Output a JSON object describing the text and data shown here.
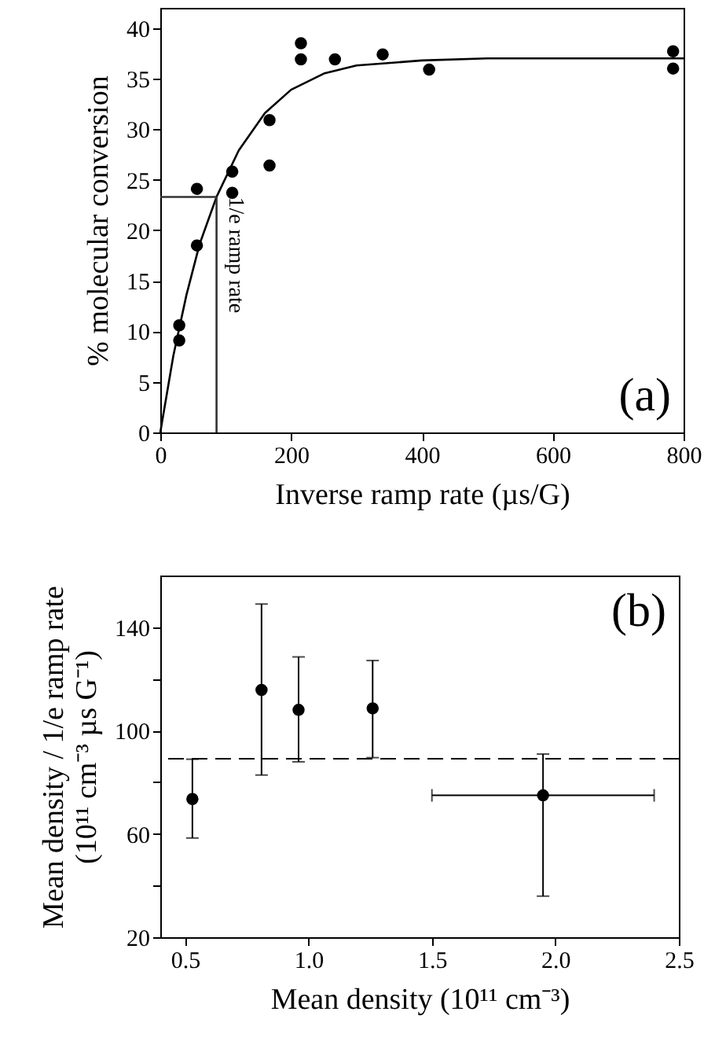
{
  "chart_data": [
    {
      "type": "scatter",
      "xlabel": "Inverse ramp rate (µs/G)",
      "ylabel": "% molecular conversion",
      "xlim": [
        0,
        800
      ],
      "xticks": [
        0,
        200,
        400,
        600,
        800
      ],
      "ylim": [
        0,
        42
      ],
      "yticks": [
        0,
        5,
        10,
        15,
        20,
        25,
        30,
        35,
        40
      ],
      "grid": false,
      "series": [
        {
          "type": "scatter",
          "marker": "circle",
          "color": "#000000",
          "x": [
            29,
            29,
            56,
            56,
            110,
            110,
            167,
            167,
            215,
            215,
            267,
            340,
            411,
            784,
            784
          ],
          "values": [
            10.6,
            9.1,
            24.1,
            18.5,
            25.8,
            23.7,
            30.9,
            26.4,
            38.5,
            36.9,
            36.9,
            37.4,
            35.9,
            37.7,
            36.0
          ]
        },
        {
          "type": "line",
          "color": "#000000",
          "line_style": "solid",
          "x": [
            0,
            20,
            40,
            60,
            86,
            120,
            160,
            200,
            250,
            300,
            400,
            500,
            600,
            800
          ],
          "values": [
            0,
            7.6,
            13.6,
            18.6,
            23.3,
            27.9,
            31.6,
            33.9,
            35.5,
            36.3,
            36.8,
            37,
            37,
            37
          ]
        },
        {
          "type": "line",
          "color": "#333333",
          "line_style": "solid",
          "x": [
            0,
            86,
            86
          ],
          "values": [
            23.3,
            23.3,
            0
          ]
        }
      ],
      "annotations": [
        "(a)",
        {
          "text": "1/e ramp rate",
          "x": 86,
          "y": 23.3
        }
      ]
    },
    {
      "type": "scatter",
      "xlabel": "Mean density (10¹¹ cm⁻³)",
      "ylabel": "Mean density / 1/e ramp rate\n(10¹¹ cm⁻³ µs G⁻¹)",
      "xlim": [
        0.4,
        2.5
      ],
      "xticks": [
        {
          "value": 0.5,
          "label": "0.5"
        },
        {
          "value": 1,
          "label": "1.0"
        },
        {
          "value": 1.5,
          "label": "1.5"
        },
        {
          "value": 2,
          "label": "2.0"
        },
        {
          "value": 2.5,
          "label": "2.5"
        }
      ],
      "ylim": [
        20,
        160
      ],
      "yticks": [
        20,
        {
          "value": 40,
          "label": null
        },
        60,
        {
          "value": 80,
          "label": null
        },
        100,
        {
          "value": 120,
          "label": null
        },
        140
      ],
      "grid": false,
      "series": [
        {
          "type": "scatter",
          "marker": "circle",
          "color": "#000000",
          "x": [
            0.53,
            0.81,
            0.96,
            1.26,
            1.95
          ],
          "values": [
            73.5,
            115.7,
            108,
            108.6,
            74.9
          ],
          "errors": [
            [
              58.4,
              88.9
            ],
            [
              82.8,
              149
            ],
            [
              87.9,
              128.5
            ],
            [
              89.5,
              127.1
            ],
            [
              35.9,
              90.9
            ]
          ],
          "xerrors": [
            null,
            null,
            null,
            null,
            [
              1.5,
              2.4
            ]
          ]
        }
      ],
      "ref_lines": [
        {
          "axis": "y",
          "value": 89.1,
          "color": "#000000",
          "line_style": "dashed"
        }
      ],
      "annotations": [
        "(b)"
      ]
    }
  ]
}
